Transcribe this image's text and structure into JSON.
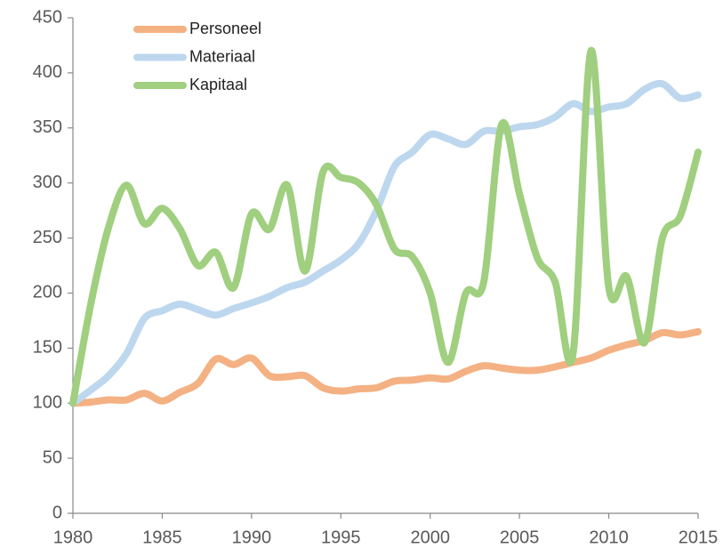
{
  "chart_data": {
    "type": "line",
    "x": [
      1980,
      1981,
      1982,
      1983,
      1984,
      1985,
      1986,
      1987,
      1988,
      1989,
      1990,
      1991,
      1992,
      1993,
      1994,
      1995,
      1996,
      1997,
      1998,
      1999,
      2000,
      2001,
      2002,
      2003,
      2004,
      2005,
      2006,
      2007,
      2008,
      2009,
      2010,
      2011,
      2012,
      2013,
      2014,
      2015
    ],
    "series": [
      {
        "name": "Personeel",
        "color": "#f4b183",
        "values": [
          100,
          101,
          103,
          103,
          109,
          102,
          110,
          118,
          140,
          135,
          141,
          125,
          124,
          125,
          114,
          111,
          113,
          114,
          120,
          121,
          123,
          122,
          129,
          134,
          132,
          130,
          130,
          133,
          137,
          141,
          148,
          153,
          157,
          164,
          162,
          165
        ]
      },
      {
        "name": "Materiaal",
        "color": "#bdd7ee",
        "values": [
          100,
          112,
          125,
          145,
          177,
          184,
          190,
          185,
          180,
          186,
          191,
          197,
          205,
          210,
          220,
          230,
          245,
          275,
          315,
          328,
          344,
          340,
          335,
          347,
          347,
          351,
          353,
          360,
          372,
          365,
          369,
          372,
          385,
          390,
          377,
          380
        ]
      },
      {
        "name": "Kapitaal",
        "color": "#9fcf7f",
        "values": [
          100,
          190,
          260,
          298,
          263,
          277,
          258,
          225,
          237,
          205,
          272,
          258,
          298,
          220,
          310,
          305,
          300,
          280,
          240,
          233,
          200,
          137,
          200,
          210,
          353,
          290,
          232,
          210,
          145,
          420,
          205,
          215,
          155,
          250,
          270,
          328
        ]
      }
    ],
    "xlim": [
      1980,
      2015
    ],
    "xticks": [
      1980,
      1985,
      1990,
      1995,
      2000,
      2005,
      2010,
      2015
    ],
    "ylim": [
      0,
      450
    ],
    "yticks": [
      0,
      50,
      100,
      150,
      200,
      250,
      300,
      350,
      400,
      450
    ],
    "legend": "upper left",
    "grid": false
  }
}
